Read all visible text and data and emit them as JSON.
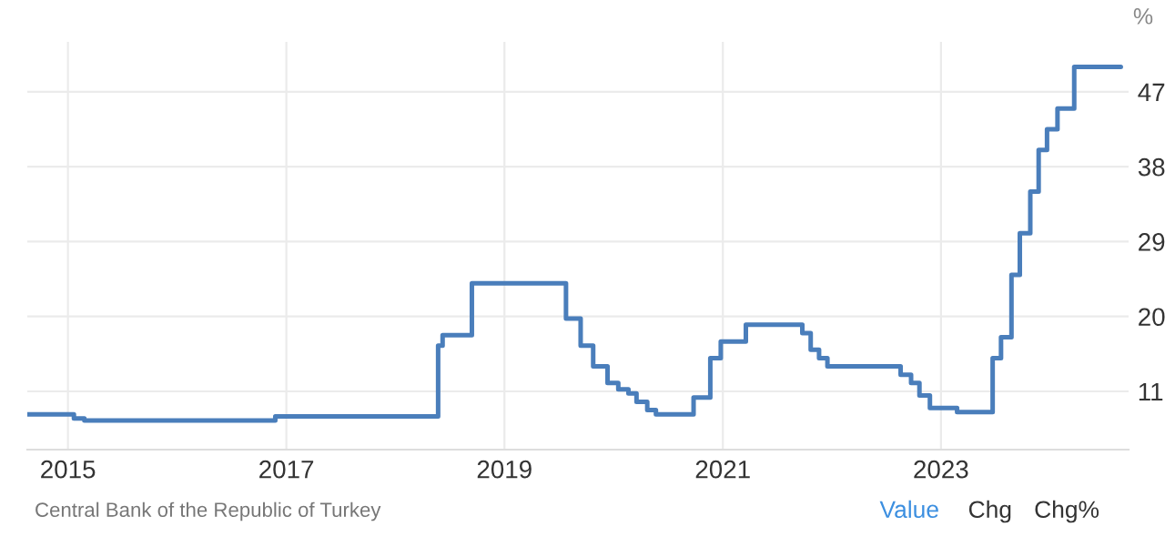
{
  "chart_data": {
    "type": "step",
    "ylabel": "%",
    "x": [
      "2014-08-18",
      "2015-01-21",
      "2015-02-25",
      "2016-11-25",
      "2018-05-24",
      "2018-06-08",
      "2018-09-14",
      "2019-07-26",
      "2019-09-13",
      "2019-10-25",
      "2019-12-12",
      "2020-01-17",
      "2020-02-20",
      "2020-03-18",
      "2020-04-23",
      "2020-05-22",
      "2020-09-25",
      "2020-11-20",
      "2020-12-25",
      "2021-03-19",
      "2021-09-24",
      "2021-10-22",
      "2021-11-19",
      "2021-12-17",
      "2022-08-19",
      "2022-09-23",
      "2022-10-21",
      "2022-11-25",
      "2023-02-24",
      "2023-06-23",
      "2023-07-21",
      "2023-08-25",
      "2023-09-22",
      "2023-10-27",
      "2023-11-24",
      "2023-12-22",
      "2024-01-26",
      "2024-03-22",
      "2024-08-25"
    ],
    "series": [
      {
        "color": "#4a7ebb",
        "values": [
          8.25,
          7.75,
          7.5,
          8.0,
          16.5,
          17.75,
          24,
          19.75,
          16.5,
          14,
          12,
          11.25,
          10.75,
          9.75,
          8.75,
          8.25,
          10.25,
          15,
          17,
          19,
          18,
          16,
          15,
          14,
          13,
          12,
          10.5,
          9,
          8.5,
          15,
          17.5,
          25,
          30,
          35,
          40,
          42.5,
          45,
          50,
          50
        ]
      }
    ],
    "xlim": [
      "2014-08-18",
      "2024-09-20"
    ],
    "xticks": [
      {
        "value": "2015-01-01",
        "label": "2015"
      },
      {
        "value": "2017-01-01",
        "label": "2017"
      },
      {
        "value": "2019-01-01",
        "label": "2019"
      },
      {
        "value": "2021-01-01",
        "label": "2021"
      },
      {
        "value": "2023-01-01",
        "label": "2023"
      }
    ],
    "ylim": [
      4,
      53
    ],
    "yticks": [
      11,
      20,
      29,
      38,
      47
    ],
    "grid": true,
    "line_style": "solid",
    "annotations": [
      "Central Bank of the Republic of Turkey",
      "Value",
      "Chg",
      "Chg%"
    ]
  }
}
